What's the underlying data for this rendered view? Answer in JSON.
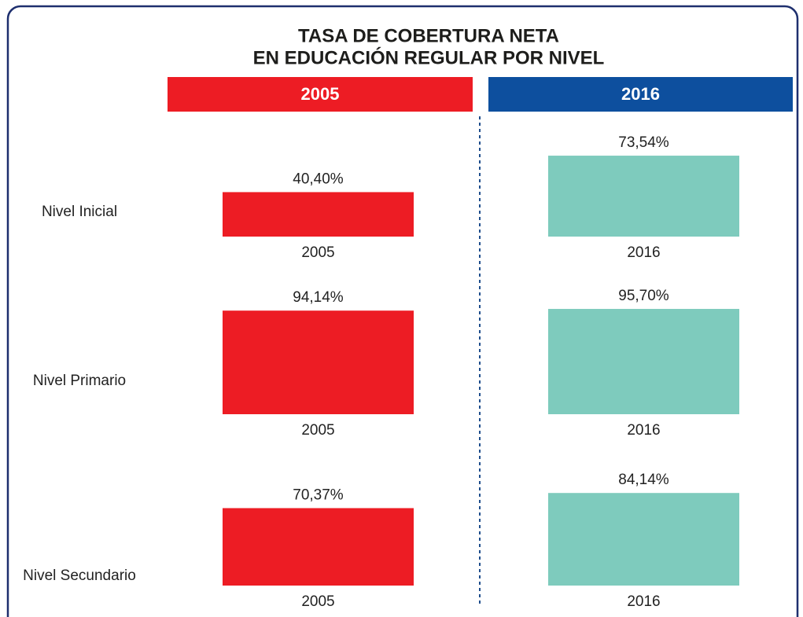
{
  "chart_data": {
    "type": "bar",
    "title": [
      "TASA DE COBERTURA NETA",
      "EN EDUCACIÓN REGULAR POR NIVEL"
    ],
    "categories": [
      "Nivel Inicial",
      "Nivel Primario",
      "Nivel Secundario"
    ],
    "series": [
      {
        "name": "2005",
        "color": "#ed1c24",
        "header_color": "#ed1c24",
        "values": [
          40.4,
          94.14,
          70.37
        ],
        "value_labels": [
          "40,40%",
          "94,14%",
          "70,37%"
        ]
      },
      {
        "name": "2016",
        "color": "#7ecbbd",
        "header_color": "#0d4f9e",
        "values": [
          73.54,
          95.7,
          84.14
        ],
        "value_labels": [
          "73,54%",
          "95,70%",
          "84,14%"
        ]
      }
    ]
  }
}
